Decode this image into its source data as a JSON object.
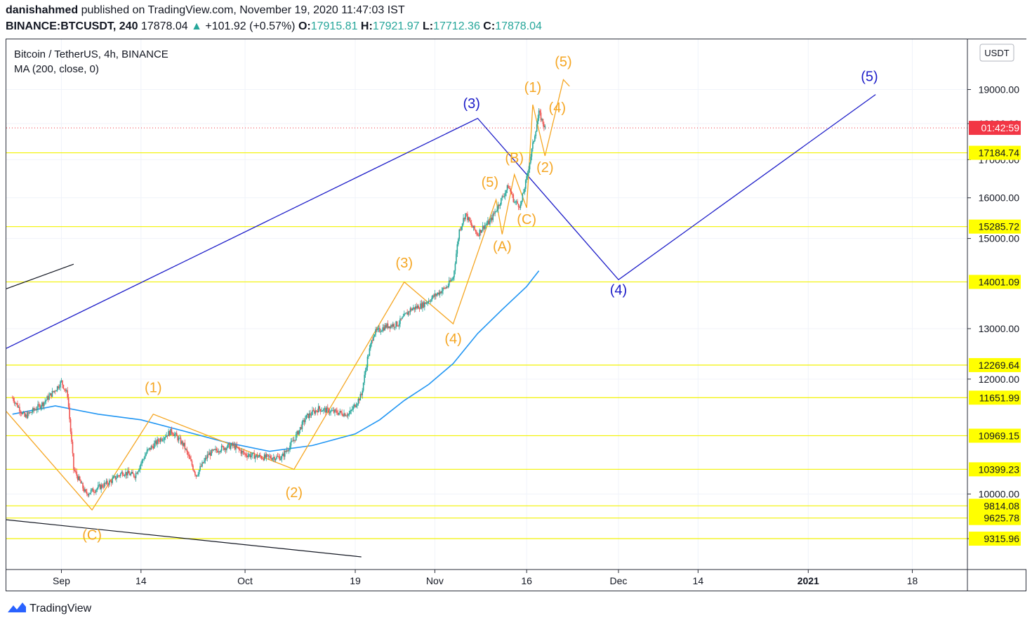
{
  "header": {
    "author": "danishahmed",
    "published_text": "published on TradingView.com, November 19, 2020 11:47:03 IST",
    "symbol": "BINANCE:BTCUSDT, 240",
    "last": "17878.04",
    "arrow": "▲",
    "change": "+101.92 (+0.57%)",
    "o_label": "O:",
    "o_value": "17915.81",
    "h_label": "H:",
    "h_value": "17921.97",
    "l_label": "L:",
    "l_value": "17712.36",
    "c_label": "C:",
    "c_value": "17878.04"
  },
  "legend": {
    "title": "Bitcoin / TetherUS, 4h, BINANCE",
    "indicator": "MA (200, close, 0)"
  },
  "currency_button": "USDT",
  "footer": {
    "brand": "TradingView"
  },
  "colors": {
    "candle_up": "#26a69a",
    "candle_down": "#ef5350",
    "ma": "#2196f3",
    "wave_blue": "#1c1cc8",
    "wave_orange": "#f5a623",
    "hline": "#f2f200",
    "hline_label_bg": "#ffff00",
    "price_tag": "#f23645"
  },
  "chart_data": {
    "type": "candlestick",
    "title": "Bitcoin / TetherUS, 4h, BINANCE",
    "x_ticks": [
      "Sep",
      "14",
      "Oct",
      "19",
      "Nov",
      "16",
      "Dec",
      "14",
      "2021",
      "18"
    ],
    "y_ticks": [
      "19000.00",
      "18000.00",
      "17000.00",
      "16000.00",
      "15000.00",
      "13000.00",
      "12000.00",
      "10000.00",
      "9315.96"
    ],
    "y_range": [
      9000,
      19700
    ],
    "x_range": [
      "2020-08-23",
      "2021-01-27"
    ],
    "countdown_label": "01:42:59",
    "price_level": 17878.04,
    "horizontal_levels": [
      {
        "label": "17184.74",
        "value": 17184.74
      },
      {
        "label": "15285.72",
        "value": 15285.72
      },
      {
        "label": "14001.09",
        "value": 14001.09
      },
      {
        "label": "12269.64",
        "value": 12269.64
      },
      {
        "label": "11651.99",
        "value": 11651.99
      },
      {
        "label": "10969.15",
        "value": 10969.15
      },
      {
        "label": "10399.23",
        "value": 10399.23
      },
      {
        "label": "9814.08",
        "value": 9814.08
      },
      {
        "label": "9625.78",
        "value": 9625.78
      },
      {
        "label": "9315.96",
        "value": 9315.96
      }
    ],
    "price_path": [
      [
        "2020-08-24",
        11650
      ],
      [
        "2020-08-26",
        11300
      ],
      [
        "2020-08-29",
        11550
      ],
      [
        "2020-08-31",
        11800
      ],
      [
        "2020-09-01",
        11950
      ],
      [
        "2020-09-02",
        11700
      ],
      [
        "2020-09-03",
        10400
      ],
      [
        "2020-09-04",
        10200
      ],
      [
        "2020-09-05",
        10000
      ],
      [
        "2020-09-07",
        10100
      ],
      [
        "2020-09-09",
        10200
      ],
      [
        "2020-09-11",
        10350
      ],
      [
        "2020-09-13",
        10300
      ],
      [
        "2020-09-15",
        10700
      ],
      [
        "2020-09-17",
        10900
      ],
      [
        "2020-09-19",
        11050
      ],
      [
        "2020-09-21",
        10800
      ],
      [
        "2020-09-23",
        10300
      ],
      [
        "2020-09-25",
        10650
      ],
      [
        "2020-09-27",
        10750
      ],
      [
        "2020-09-29",
        10800
      ],
      [
        "2020-10-01",
        10650
      ],
      [
        "2020-10-04",
        10600
      ],
      [
        "2020-10-07",
        10600
      ],
      [
        "2020-10-09",
        10900
      ],
      [
        "2020-10-11",
        11300
      ],
      [
        "2020-10-13",
        11450
      ],
      [
        "2020-10-15",
        11400
      ],
      [
        "2020-10-18",
        11350
      ],
      [
        "2020-10-20",
        11700
      ],
      [
        "2020-10-21",
        12400
      ],
      [
        "2020-10-22",
        12900
      ],
      [
        "2020-10-24",
        13050
      ],
      [
        "2020-10-26",
        13100
      ],
      [
        "2020-10-28",
        13400
      ],
      [
        "2020-10-30",
        13500
      ],
      [
        "2020-11-01",
        13700
      ],
      [
        "2020-11-03",
        13900
      ],
      [
        "2020-11-04",
        14100
      ],
      [
        "2020-11-05",
        15200
      ],
      [
        "2020-11-06",
        15600
      ],
      [
        "2020-11-07",
        15300
      ],
      [
        "2020-11-08",
        15100
      ],
      [
        "2020-11-09",
        15300
      ],
      [
        "2020-11-10",
        15400
      ],
      [
        "2020-11-11",
        15700
      ],
      [
        "2020-11-12",
        16000
      ],
      [
        "2020-11-13",
        16300
      ],
      [
        "2020-11-14",
        15900
      ],
      [
        "2020-11-15",
        15800
      ],
      [
        "2020-11-16",
        16500
      ],
      [
        "2020-11-17",
        17400
      ],
      [
        "2020-11-18",
        18300
      ],
      [
        "2020-11-19",
        17878
      ]
    ],
    "ma200": [
      [
        "2020-08-24",
        11350
      ],
      [
        "2020-08-31",
        11500
      ],
      [
        "2020-09-07",
        11350
      ],
      [
        "2020-09-14",
        11250
      ],
      [
        "2020-09-21",
        11050
      ],
      [
        "2020-09-28",
        10850
      ],
      [
        "2020-10-05",
        10700
      ],
      [
        "2020-10-12",
        10800
      ],
      [
        "2020-10-19",
        11000
      ],
      [
        "2020-10-23",
        11250
      ],
      [
        "2020-10-27",
        11600
      ],
      [
        "2020-10-31",
        11900
      ],
      [
        "2020-11-04",
        12300
      ],
      [
        "2020-11-08",
        12900
      ],
      [
        "2020-11-12",
        13400
      ],
      [
        "2020-11-16",
        13900
      ],
      [
        "2020-11-18",
        14250
      ]
    ],
    "wave_blue": {
      "points": [
        [
          "2020-08-23",
          12600
        ],
        [
          "2020-11-08",
          18150
        ],
        [
          "2020-12-01",
          14050
        ],
        [
          "2021-01-12",
          18850
        ]
      ],
      "labels": [
        {
          "text": "(3)",
          "x": "2020-11-07",
          "y": 18450
        },
        {
          "text": "(4)",
          "x": "2020-12-01",
          "y": 13720
        },
        {
          "text": "(5)",
          "x": "2021-01-11",
          "y": 19250
        }
      ]
    },
    "black_lines": [
      {
        "points": [
          [
            "2020-08-23",
            13850
          ],
          [
            "2020-09-03",
            14400
          ]
        ]
      },
      {
        "points": [
          [
            "2020-08-23",
            9600
          ],
          [
            "2020-10-20",
            9050
          ]
        ]
      }
    ],
    "wave_orange": [
      {
        "points": [
          [
            "2020-08-23",
            11400
          ],
          [
            "2020-09-06",
            9750
          ],
          [
            "2020-09-16",
            11350
          ],
          [
            "2020-10-09",
            10400
          ],
          [
            "2020-10-27",
            14000
          ],
          [
            "2020-11-04",
            13100
          ],
          [
            "2020-11-11",
            15950
          ],
          [
            "2020-11-12",
            15100
          ],
          [
            "2020-11-14",
            16600
          ],
          [
            "2020-11-16",
            15750
          ],
          [
            "2020-11-17",
            18550
          ],
          [
            "2020-11-19",
            17100
          ],
          [
            "2020-11-22",
            19300
          ],
          [
            "2020-11-23",
            19100
          ]
        ]
      }
    ],
    "wave_orange_labels": [
      {
        "text": "(C)",
        "x": "2020-09-06",
        "y": 9300
      },
      {
        "text": "(1)",
        "x": "2020-09-16",
        "y": 11750
      },
      {
        "text": "(2)",
        "x": "2020-10-09",
        "y": 9950
      },
      {
        "text": "(3)",
        "x": "2020-10-27",
        "y": 14320
      },
      {
        "text": "(4)",
        "x": "2020-11-04",
        "y": 12700
      },
      {
        "text": "(5)",
        "x": "2020-11-10",
        "y": 16280
      },
      {
        "text": "(A)",
        "x": "2020-11-12",
        "y": 14700
      },
      {
        "text": "(B)",
        "x": "2020-11-14",
        "y": 16920
      },
      {
        "text": "(C)",
        "x": "2020-11-16",
        "y": 15350
      },
      {
        "text": "(1)",
        "x": "2020-11-17",
        "y": 18930
      },
      {
        "text": "(2)",
        "x": "2020-11-19",
        "y": 16670
      },
      {
        "text": "(4)",
        "x": "2020-11-21",
        "y": 18320
      },
      {
        "text": "(5)",
        "x": "2020-11-22",
        "y": 19710
      }
    ]
  }
}
